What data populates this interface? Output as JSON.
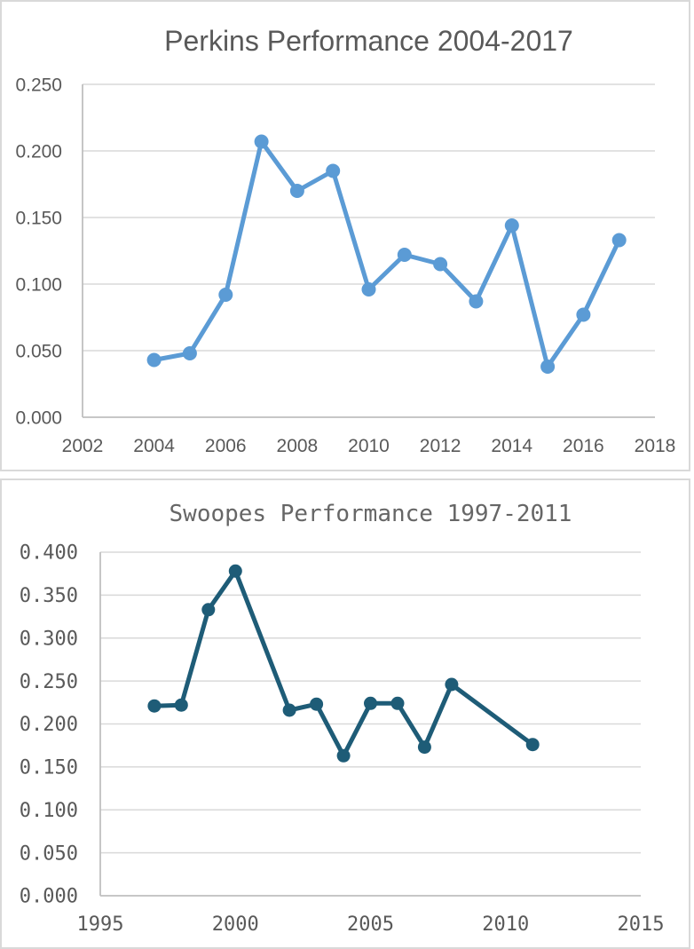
{
  "page": {
    "description": "Two stacked line charts comparing player performance"
  },
  "colors": {
    "grid": "#d9d9d9",
    "axis": "#bfbfbf",
    "label": "#595959",
    "panel_border": "#d9d9d9",
    "background": "#ffffff",
    "perkins_line": "#5b9bd5",
    "swoopes_line": "#1e5c77"
  },
  "chart_data": [
    {
      "type": "line",
      "title": "Perkins Performance 2004-2017",
      "xlabel": "",
      "ylabel": "",
      "legend": "none",
      "grid": true,
      "line_color": "#5b9bd5",
      "marker": "circle",
      "xlim": [
        2002,
        2018
      ],
      "ylim": [
        0.0,
        0.25
      ],
      "x": [
        2004,
        2005,
        2006,
        2007,
        2008,
        2009,
        2010,
        2011,
        2012,
        2013,
        2014,
        2015,
        2016,
        2017
      ],
      "values": [
        0.043,
        0.048,
        0.092,
        0.207,
        0.17,
        0.185,
        0.096,
        0.122,
        0.115,
        0.087,
        0.144,
        0.038,
        0.077,
        0.133
      ],
      "x_tick_labels": [
        "2002",
        "2004",
        "2006",
        "2008",
        "2010",
        "2012",
        "2014",
        "2016",
        "2018"
      ],
      "y_tick_labels": [
        "0.000",
        "0.050",
        "0.100",
        "0.150",
        "0.200",
        "0.250"
      ]
    },
    {
      "type": "line",
      "title": "Swoopes Performance 1997-2011",
      "xlabel": "",
      "ylabel": "",
      "legend": "none",
      "grid": true,
      "line_color": "#1e5c77",
      "marker": "circle",
      "xlim": [
        1995,
        2015
      ],
      "ylim": [
        0.0,
        0.4
      ],
      "x": [
        1997,
        1998,
        1999,
        2000,
        2002,
        2003,
        2004,
        2005,
        2006,
        2007,
        2008,
        2011
      ],
      "values": [
        0.221,
        0.222,
        0.333,
        0.378,
        0.216,
        0.223,
        0.163,
        0.224,
        0.224,
        0.173,
        0.246,
        0.176
      ],
      "x_tick_labels": [
        "1995",
        "2000",
        "2005",
        "2010",
        "2015"
      ],
      "y_tick_labels": [
        "0.000",
        "0.050",
        "0.100",
        "0.150",
        "0.200",
        "0.250",
        "0.300",
        "0.350",
        "0.400"
      ]
    }
  ]
}
